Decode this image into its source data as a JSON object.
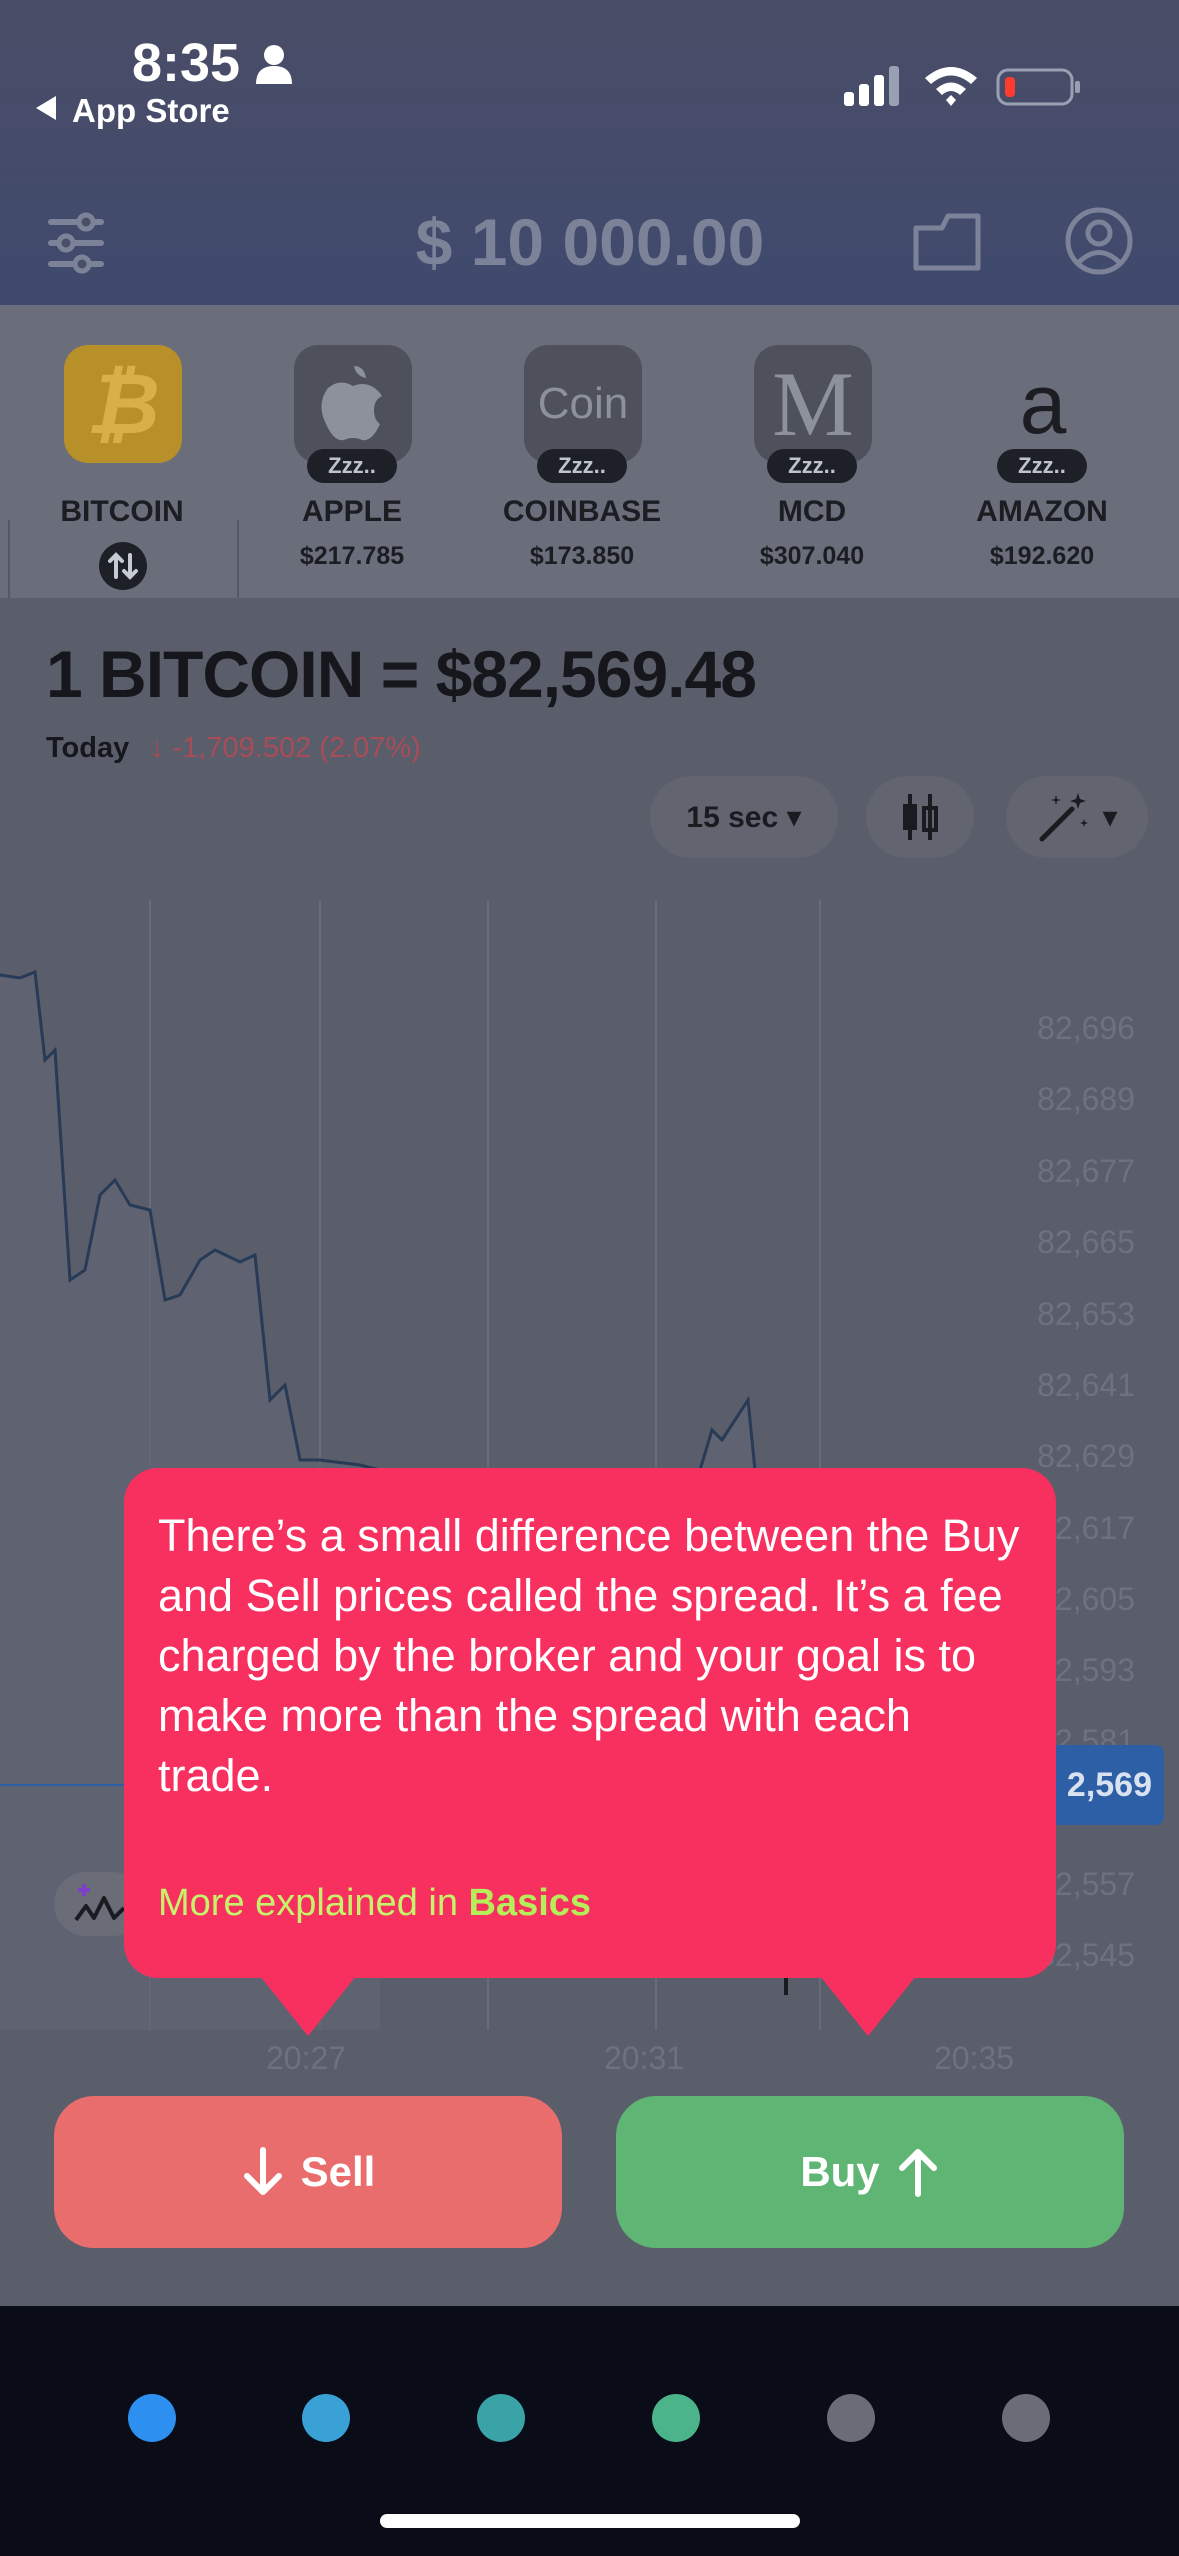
{
  "status_bar": {
    "time": "8:35",
    "back_label": "App Store"
  },
  "header": {
    "balance": "$ 10 000.00"
  },
  "assets": [
    {
      "name": "BITCOIN",
      "price": "",
      "logo_text": "₿",
      "badge": "",
      "color": "#b8902a"
    },
    {
      "name": "APPLE",
      "price": "$217.785",
      "logo_text": "",
      "badge": "Zzz..",
      "color": "#4e515c"
    },
    {
      "name": "COINBASE",
      "price": "$173.850",
      "logo_text": "Coin",
      "badge": "Zzz..",
      "color": "#4e515c"
    },
    {
      "name": "MCD",
      "price": "$307.040",
      "logo_text": "M",
      "badge": "Zzz..",
      "color": "#4e515c"
    },
    {
      "name": "AMAZON",
      "price": "$192.620",
      "logo_text": "a",
      "badge": "Zzz..",
      "color": "#6a6d7a"
    }
  ],
  "quote": {
    "price_line": "1 BITCOIN =  $82,569.48",
    "today_label": "Today",
    "change": "↓ -1,709.502 (2.07%)"
  },
  "controls": {
    "interval": "15 sec ▾",
    "chart_type_icon": "candlestick-icon",
    "tools_icon": "magic-wand-icon"
  },
  "chart": {
    "y_ticks": [
      "82,696",
      "82,689",
      "82,677",
      "82,665",
      "82,653",
      "82,641",
      "82,629",
      "82,617",
      "82,605",
      "82,593",
      "82,581",
      "82,557",
      "82,545"
    ],
    "x_ticks": [
      "20:27",
      "20:31",
      "20:35"
    ],
    "current_price_badge": "2,569"
  },
  "tooltip": {
    "text": "There’s a small difference between the Buy and Sell prices called the spread. It’s a fee charged by the broker and your goal is to make more than the spread with each trade.",
    "more_prefix": "More explained in ",
    "more_link": "Basics"
  },
  "actions": {
    "sell": "Sell",
    "buy": "Buy"
  },
  "page_dots": [
    "#2d8ff0",
    "#39a1d6",
    "#3aa3a8",
    "#4bb48a",
    "#6a6d78",
    "#6a6d78"
  ]
}
